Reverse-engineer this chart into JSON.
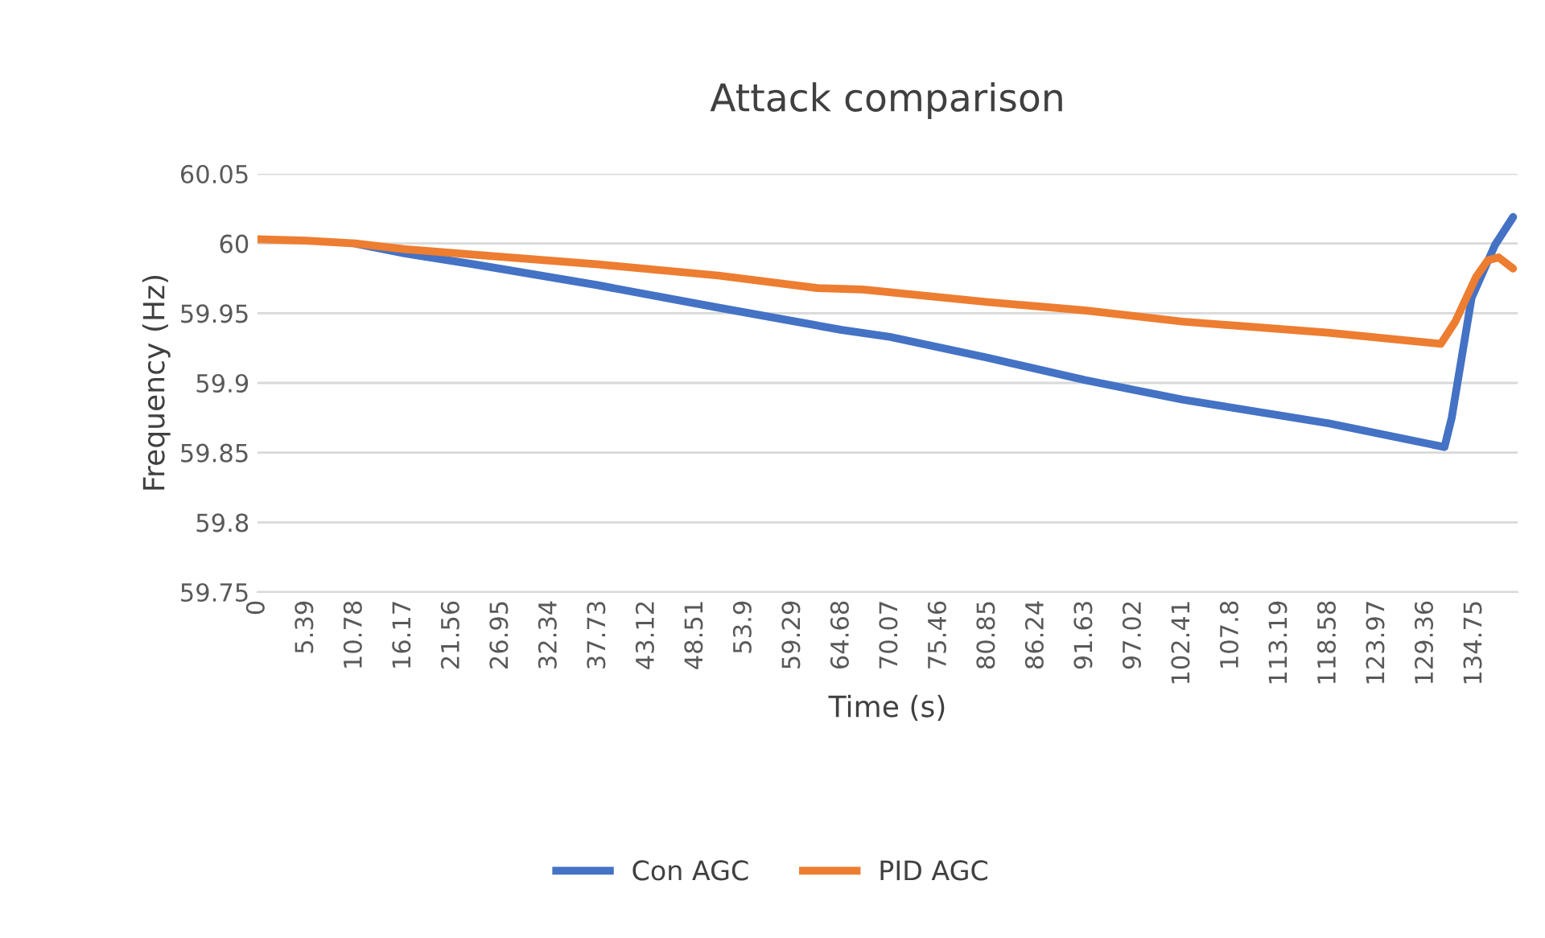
{
  "chart_data": {
    "type": "line",
    "title": "Attack comparison",
    "xlabel": "Time (s)",
    "ylabel": "Frequency (Hz)",
    "xlim": [
      0,
      139.5
    ],
    "xticks": [
      0,
      5.39,
      10.78,
      16.17,
      21.56,
      26.95,
      32.34,
      37.73,
      43.12,
      48.51,
      53.9,
      59.29,
      64.68,
      70.07,
      75.46,
      80.85,
      86.24,
      91.63,
      97.02,
      102.41,
      107.8,
      113.19,
      118.58,
      123.97,
      129.36,
      134.75
    ],
    "ylim": [
      59.75,
      60.05
    ],
    "yticks": [
      59.75,
      59.8,
      59.85,
      59.9,
      59.95,
      60,
      60.05
    ],
    "grid": "y",
    "legend": "bottom",
    "line_style": "solid",
    "marker": "none",
    "series": [
      {
        "name": "Con AGC",
        "color": "#4472c4",
        "x": [
          10.78,
          16.17,
          24,
          37.73,
          51,
          64.68,
          70,
          80.85,
          91.63,
          102.41,
          118.58,
          131.4,
          132.2,
          134.4,
          137,
          139
        ],
        "values": [
          60.0,
          59.993,
          59.985,
          59.97,
          59.954,
          59.938,
          59.933,
          59.918,
          59.902,
          59.888,
          59.871,
          59.854,
          59.875,
          59.961,
          59.999,
          60.019
        ]
      },
      {
        "name": "PID AGC",
        "color": "#ed7d31",
        "x": [
          0,
          5.39,
          10.78,
          16.17,
          24,
          37.73,
          51,
          62,
          67,
          80.85,
          91.63,
          102.41,
          118.58,
          131,
          132.6,
          134.9,
          136.2,
          137.4,
          139
        ],
        "values": [
          60.003,
          60.002,
          60.0,
          59.996,
          59.992,
          59.985,
          59.977,
          59.968,
          59.967,
          59.958,
          59.952,
          59.944,
          59.936,
          59.928,
          59.944,
          59.976,
          59.988,
          59.99,
          59.982
        ]
      }
    ]
  }
}
